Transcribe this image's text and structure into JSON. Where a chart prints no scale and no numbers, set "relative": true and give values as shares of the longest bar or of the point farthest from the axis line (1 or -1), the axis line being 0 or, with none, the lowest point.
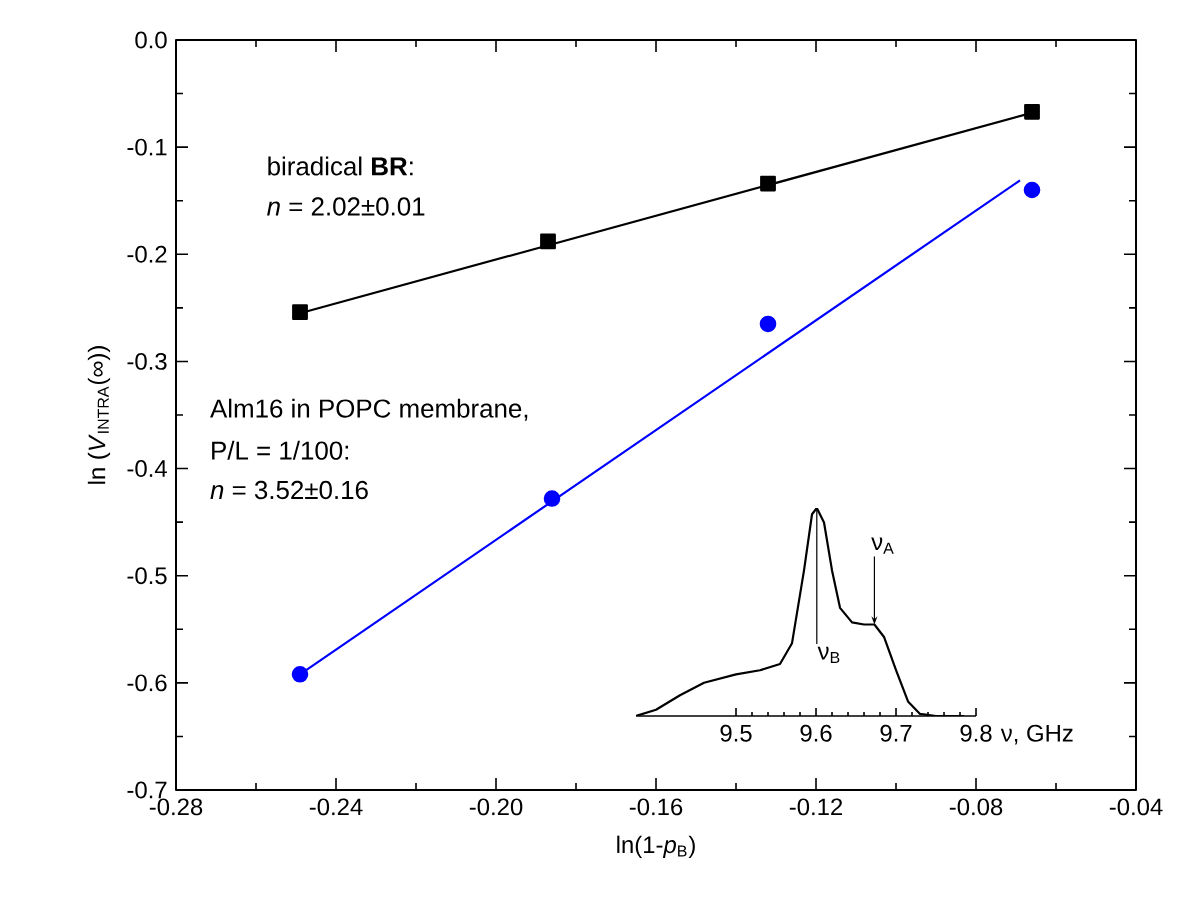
{
  "chart_data": [
    {
      "type": "scatter",
      "xlabel": "ln(1-*p*$_{B}$)",
      "ylabel": "ln (*V*$_{INTRA}$(∞))",
      "xlim": [
        -0.28,
        -0.04
      ],
      "xticks": [
        -0.28,
        -0.24,
        {
          "value": -0.2,
          "label": "-0.20"
        },
        -0.16,
        -0.12,
        -0.08,
        -0.04
      ],
      "ylim": [
        -0.7,
        0
      ],
      "yticks": [
        -0.7,
        -0.6,
        -0.5,
        -0.4,
        -0.3,
        -0.2,
        -0.1,
        {
          "value": 0,
          "label": "0.0"
        }
      ],
      "series": [
        {
          "type": "scatter",
          "color": "#000000",
          "marker": "square",
          "x": [
            -0.249,
            -0.187,
            -0.132,
            -0.066
          ],
          "values": [
            -0.254,
            -0.188,
            -0.134,
            -0.067
          ]
        },
        {
          "type": "line",
          "color": "#000000",
          "marker": "none",
          "x": [
            -0.249,
            -0.066
          ],
          "values": [
            -0.255,
            -0.068
          ]
        },
        {
          "type": "scatter",
          "color": "#0000ff",
          "marker": "circle",
          "x": [
            -0.249,
            -0.186,
            -0.132,
            -0.066
          ],
          "values": [
            -0.592,
            -0.428,
            -0.265,
            -0.14
          ]
        },
        {
          "type": "line",
          "color": "#0000ff",
          "marker": "none",
          "x": [
            -0.249,
            -0.069
          ],
          "values": [
            -0.592,
            -0.131
          ]
        }
      ],
      "annotations": [
        "biradical **BR**:",
        "*n* = 2.02±0.01",
        "Alm16 in POPC membrane,",
        "P/L = 1/100:",
        "*n* = 3.52±0.16"
      ]
    },
    {
      "type": "line",
      "relative": true,
      "xlabel": "ν, GHz",
      "xlim": [
        9.375,
        9.8
      ],
      "xticks": [
        9.5,
        9.6,
        9.7,
        9.8
      ],
      "tick_labels": "x",
      "series": [
        {
          "color": "#000000",
          "x": [
            9.375,
            9.4,
            9.43,
            9.46,
            9.5,
            9.53,
            9.555,
            9.57,
            9.585,
            9.595,
            9.601,
            9.61,
            9.62,
            9.63,
            9.645,
            9.66,
            9.673,
            9.685,
            9.7,
            9.715,
            9.73,
            9.75,
            9.785
          ],
          "values": [
            0,
            0.03,
            0.1,
            0.16,
            0.2,
            0.22,
            0.25,
            0.35,
            0.7,
            0.97,
            1,
            0.93,
            0.7,
            0.52,
            0.45,
            0.44,
            0.44,
            0.38,
            0.22,
            0.07,
            0.01,
            0,
            0
          ]
        }
      ],
      "annotations": [
        {
          "text": "ν$_{A}$",
          "x": 9.673,
          "y": 0.44
        },
        {
          "text": "ν$_{B}$",
          "x": 9.601,
          "y": 1
        }
      ]
    }
  ]
}
